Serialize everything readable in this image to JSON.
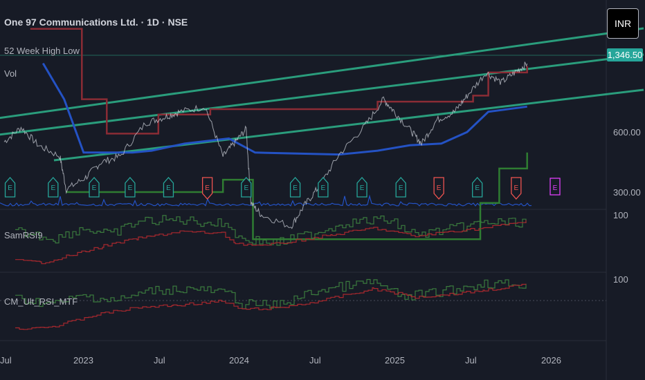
{
  "header": {
    "title": "One 97 Communications Ltd. · 1D · NSE",
    "indicators": [
      "52 Week High Low",
      "Vol"
    ]
  },
  "currency_button": "INR",
  "last_price_label": "1,346.50",
  "panes": {
    "main_y_ticks": [
      "600.00",
      "300.00"
    ],
    "rsi_label": "SamRSI9",
    "rsi_tick": "100",
    "cm_label": "CM_Ult_RSI_MTF",
    "cm_tick": "100"
  },
  "x_ticks": [
    "Jul",
    "2023",
    "Jul",
    "2024",
    "Jul",
    "2025",
    "Jul",
    "2026"
  ],
  "colors": {
    "background": "#171b26",
    "channel": "#2a9d7c",
    "high_line": "#8b2c35",
    "low_line": "#2452c4",
    "low_52w": "#2f7d32",
    "earnings_green": "#26a69a",
    "earnings_red": "#ef5350",
    "earnings_future": "#e040fb",
    "price_tag": "#26a69a"
  },
  "chart_data": {
    "type": "line",
    "x_range": [
      "2022-07-01",
      "2026-04-30"
    ],
    "y_scale": "log",
    "price": [
      {
        "t": "2022-07-01",
        "v": 700
      },
      {
        "t": "2022-08-10",
        "v": 790
      },
      {
        "t": "2022-09-20",
        "v": 680
      },
      {
        "t": "2022-11-10",
        "v": 620
      },
      {
        "t": "2022-11-25",
        "v": 470
      },
      {
        "t": "2023-01-10",
        "v": 520
      },
      {
        "t": "2023-02-15",
        "v": 590
      },
      {
        "t": "2023-04-01",
        "v": 620
      },
      {
        "t": "2023-06-01",
        "v": 820
      },
      {
        "t": "2023-07-15",
        "v": 860
      },
      {
        "t": "2023-08-20",
        "v": 900
      },
      {
        "t": "2023-10-20",
        "v": 940
      },
      {
        "t": "2023-12-01",
        "v": 620
      },
      {
        "t": "2023-12-30",
        "v": 700
      },
      {
        "t": "2024-01-25",
        "v": 780
      },
      {
        "t": "2024-02-05",
        "v": 420
      },
      {
        "t": "2024-03-01",
        "v": 380
      },
      {
        "t": "2024-05-10",
        "v": 345
      },
      {
        "t": "2024-06-10",
        "v": 410
      },
      {
        "t": "2024-07-15",
        "v": 480
      },
      {
        "t": "2024-09-01",
        "v": 630
      },
      {
        "t": "2024-11-01",
        "v": 800
      },
      {
        "t": "2024-12-15",
        "v": 1000
      },
      {
        "t": "2025-01-10",
        "v": 900
      },
      {
        "t": "2025-02-20",
        "v": 760
      },
      {
        "t": "2025-03-15",
        "v": 690
      },
      {
        "t": "2025-04-20",
        "v": 840
      },
      {
        "t": "2025-06-01",
        "v": 900
      },
      {
        "t": "2025-07-01",
        "v": 1030
      },
      {
        "t": "2025-08-15",
        "v": 1250
      },
      {
        "t": "2025-09-20",
        "v": 1150
      },
      {
        "t": "2025-10-25",
        "v": 1260
      },
      {
        "t": "2025-11-20",
        "v": 1346.5
      }
    ],
    "high_52w": [
      {
        "t": "2022-09-01",
        "v": 1800
      },
      {
        "t": "2023-01-01",
        "v": 1000
      },
      {
        "t": "2023-03-01",
        "v": 750
      },
      {
        "t": "2023-06-01",
        "v": 750
      },
      {
        "t": "2023-07-01",
        "v": 880
      },
      {
        "t": "2023-11-01",
        "v": 920
      },
      {
        "t": "2024-12-01",
        "v": 980
      },
      {
        "t": "2025-07-15",
        "v": 1030
      },
      {
        "t": "2025-08-20",
        "v": 1250
      },
      {
        "t": "2025-11-20",
        "v": 1320
      }
    ],
    "low_52w": [
      {
        "t": "2022-11-25",
        "v": 460
      },
      {
        "t": "2023-11-20",
        "v": 460
      },
      {
        "t": "2023-12-01",
        "v": 510
      },
      {
        "t": "2024-01-25",
        "v": 510
      },
      {
        "t": "2024-02-10",
        "v": 310
      },
      {
        "t": "2025-05-15",
        "v": 310
      },
      {
        "t": "2025-08-01",
        "v": 420
      },
      {
        "t": "2025-09-15",
        "v": 560
      },
      {
        "t": "2025-11-20",
        "v": 640
      }
    ],
    "earnings": [
      {
        "t": "2022-07-15",
        "type": "green"
      },
      {
        "t": "2022-10-25",
        "type": "green"
      },
      {
        "t": "2023-01-30",
        "type": "green"
      },
      {
        "t": "2023-04-25",
        "type": "green"
      },
      {
        "t": "2023-07-25",
        "type": "green"
      },
      {
        "t": "2023-10-25",
        "type": "red"
      },
      {
        "t": "2024-01-25",
        "type": "green"
      },
      {
        "t": "2024-05-20",
        "type": "green"
      },
      {
        "t": "2024-07-25",
        "type": "green"
      },
      {
        "t": "2024-10-25",
        "type": "green"
      },
      {
        "t": "2025-01-25",
        "type": "green"
      },
      {
        "t": "2025-04-25",
        "type": "red"
      },
      {
        "t": "2025-07-25",
        "type": "green"
      },
      {
        "t": "2025-10-25",
        "type": "red"
      },
      {
        "t": "2026-01-25",
        "type": "future"
      }
    ]
  }
}
